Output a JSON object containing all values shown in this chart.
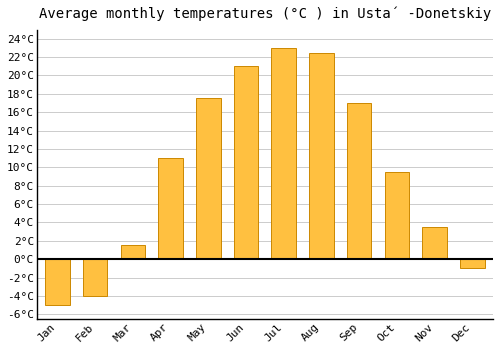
{
  "title": "Average monthly temperatures (°C ) in Ustа́ -Donetskiy",
  "months": [
    "Jan",
    "Feb",
    "Mar",
    "Apr",
    "May",
    "Jun",
    "Jul",
    "Aug",
    "Sep",
    "Oct",
    "Nov",
    "Dec"
  ],
  "values": [
    -5.0,
    -4.0,
    1.5,
    11.0,
    17.5,
    21.0,
    23.0,
    22.5,
    17.0,
    9.5,
    3.5,
    -1.0
  ],
  "bar_color": "#FFC040",
  "bar_edge_color": "#CC8800",
  "background_color": "#ffffff",
  "plot_bg_color": "#ffffff",
  "ylim": [
    -6.5,
    25
  ],
  "yticks": [
    -6,
    -4,
    -2,
    0,
    2,
    4,
    6,
    8,
    10,
    12,
    14,
    16,
    18,
    20,
    22,
    24
  ],
  "ylabel_suffix": "°C",
  "title_fontsize": 10,
  "tick_fontsize": 8,
  "grid_color": "#cccccc",
  "zero_line_color": "#000000"
}
